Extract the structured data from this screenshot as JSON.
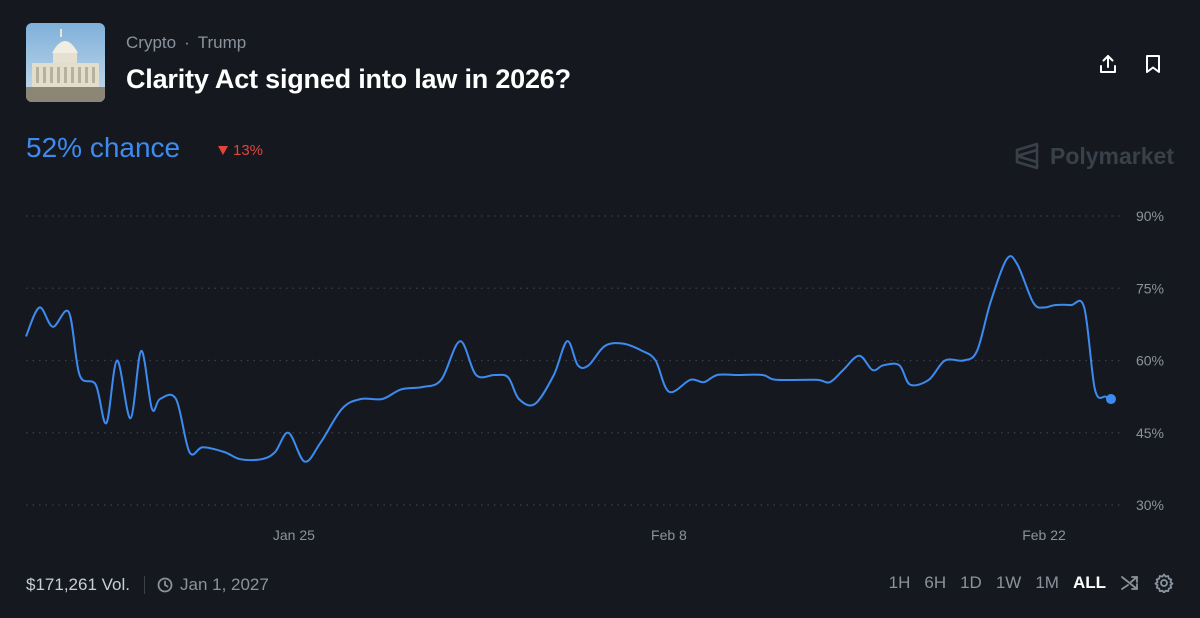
{
  "header": {
    "category": "Crypto",
    "tag": "Trump",
    "title": "Clarity Act signed into law in 2026?"
  },
  "summary": {
    "chance_label": "52% chance",
    "change_label": "13%",
    "brand": "Polymarket"
  },
  "footer": {
    "volume": "$171,261 Vol.",
    "end_date": "Jan 1, 2027",
    "ranges": [
      "1H",
      "6H",
      "1D",
      "1W",
      "1M",
      "ALL"
    ],
    "active_range": "ALL"
  },
  "colors": {
    "line": "#3d8bf0",
    "down": "#e0453d",
    "grid": "#3a404a"
  },
  "chart_data": {
    "type": "line",
    "x_unit": "days since Jan 15",
    "xlim": [
      0,
      41
    ],
    "ylim": [
      30,
      90
    ],
    "yticks": [
      30,
      45,
      60,
      75,
      90
    ],
    "ytick_labels": [
      "30%",
      "45%",
      "60%",
      "75%",
      "90%"
    ],
    "xticks": [
      10,
      24,
      38
    ],
    "xtick_labels": [
      "Jan 25",
      "Feb 8",
      "Feb 22"
    ],
    "grid": "dotted horizontal",
    "series": [
      {
        "values": [
          [
            0.0,
            65
          ],
          [
            0.5,
            71
          ],
          [
            1.0,
            67
          ],
          [
            1.6,
            70
          ],
          [
            2.0,
            57
          ],
          [
            2.6,
            55
          ],
          [
            3.0,
            47
          ],
          [
            3.4,
            60
          ],
          [
            3.9,
            48
          ],
          [
            4.3,
            62
          ],
          [
            4.7,
            50
          ],
          [
            5.0,
            52
          ],
          [
            5.6,
            52
          ],
          [
            6.1,
            41
          ],
          [
            6.6,
            42
          ],
          [
            7.4,
            41
          ],
          [
            8.0,
            39.5
          ],
          [
            8.8,
            39.5
          ],
          [
            9.3,
            41
          ],
          [
            9.8,
            45
          ],
          [
            10.4,
            39
          ],
          [
            11.0,
            43
          ],
          [
            11.8,
            50
          ],
          [
            12.5,
            52
          ],
          [
            13.3,
            52
          ],
          [
            14.0,
            54
          ],
          [
            14.8,
            54.5
          ],
          [
            15.5,
            56
          ],
          [
            16.2,
            64
          ],
          [
            16.8,
            57
          ],
          [
            17.5,
            57
          ],
          [
            18.0,
            56.5
          ],
          [
            18.4,
            52
          ],
          [
            19.0,
            51
          ],
          [
            19.7,
            57
          ],
          [
            20.2,
            64
          ],
          [
            20.6,
            59
          ],
          [
            21.0,
            59
          ],
          [
            21.6,
            63
          ],
          [
            22.3,
            63.5
          ],
          [
            23.0,
            62
          ],
          [
            23.5,
            60
          ],
          [
            24.0,
            53.5
          ],
          [
            24.8,
            56
          ],
          [
            25.3,
            55.5
          ],
          [
            25.8,
            57
          ],
          [
            26.5,
            57
          ],
          [
            27.5,
            57
          ],
          [
            28.0,
            56
          ],
          [
            29.5,
            56
          ],
          [
            30.0,
            55.5
          ],
          [
            30.5,
            58
          ],
          [
            31.1,
            61
          ],
          [
            31.6,
            58
          ],
          [
            32.0,
            59
          ],
          [
            32.6,
            59
          ],
          [
            33.0,
            55
          ],
          [
            33.7,
            56
          ],
          [
            34.3,
            60
          ],
          [
            35.0,
            60
          ],
          [
            35.5,
            62
          ],
          [
            36.0,
            72
          ],
          [
            36.6,
            81
          ],
          [
            37.0,
            80
          ],
          [
            37.6,
            72
          ],
          [
            38.0,
            71
          ],
          [
            38.4,
            71.5
          ],
          [
            39.0,
            71.5
          ],
          [
            39.5,
            71
          ],
          [
            39.9,
            54
          ],
          [
            40.3,
            52.5
          ],
          [
            40.5,
            52
          ]
        ]
      }
    ]
  }
}
